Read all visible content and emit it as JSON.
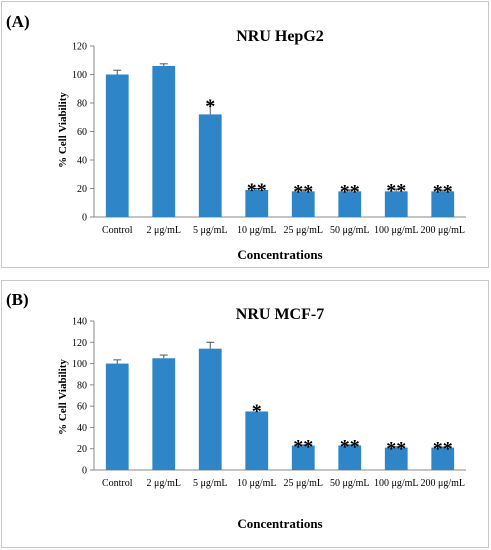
{
  "panels": [
    {
      "label": "(A)"
    },
    {
      "label": "(B)"
    }
  ],
  "colors": {
    "bar": "#2e86c9",
    "axis": "#888888",
    "error": "#555555"
  },
  "chart_data": [
    {
      "type": "bar",
      "title": "NRU HepG2",
      "xlabel": "Concentrations",
      "ylabel": "% Cell Viability",
      "ylim": [
        0,
        120
      ],
      "yticks": [
        0,
        20,
        40,
        60,
        80,
        100,
        120
      ],
      "categories": [
        "Control",
        "2 μg/mL",
        "5 μg/mL",
        "10 μg/mL",
        "25 μg/mL",
        "50 μg/mL",
        "100 μg/mL",
        "200 μg/mL"
      ],
      "values": [
        100,
        106,
        72,
        19,
        18,
        18,
        18,
        18
      ],
      "errors": [
        3,
        1.5,
        7,
        1,
        1,
        1,
        1.5,
        0.8
      ],
      "annotations": [
        "",
        "",
        "*",
        "**",
        "**",
        "**",
        "**",
        "**"
      ]
    },
    {
      "type": "bar",
      "title": "NRU MCF-7",
      "xlabel": "Concentrations",
      "ylabel": "% Cell Viability",
      "ylim": [
        0,
        140
      ],
      "yticks": [
        0,
        20,
        40,
        60,
        80,
        100,
        120,
        140
      ],
      "categories": [
        "Control",
        "2 μg/mL",
        "5 μg/mL",
        "10 μg/mL",
        "25 μg/mL",
        "50 μg/mL",
        "100 μg/mL",
        "200 μg/mL"
      ],
      "values": [
        100,
        105,
        114,
        55,
        23,
        23,
        21,
        21
      ],
      "errors": [
        3.5,
        3,
        6,
        2,
        0.5,
        0.5,
        0.8,
        0.5
      ],
      "annotations": [
        "",
        "",
        "",
        "*",
        "**",
        "**",
        "**",
        "**"
      ]
    }
  ]
}
